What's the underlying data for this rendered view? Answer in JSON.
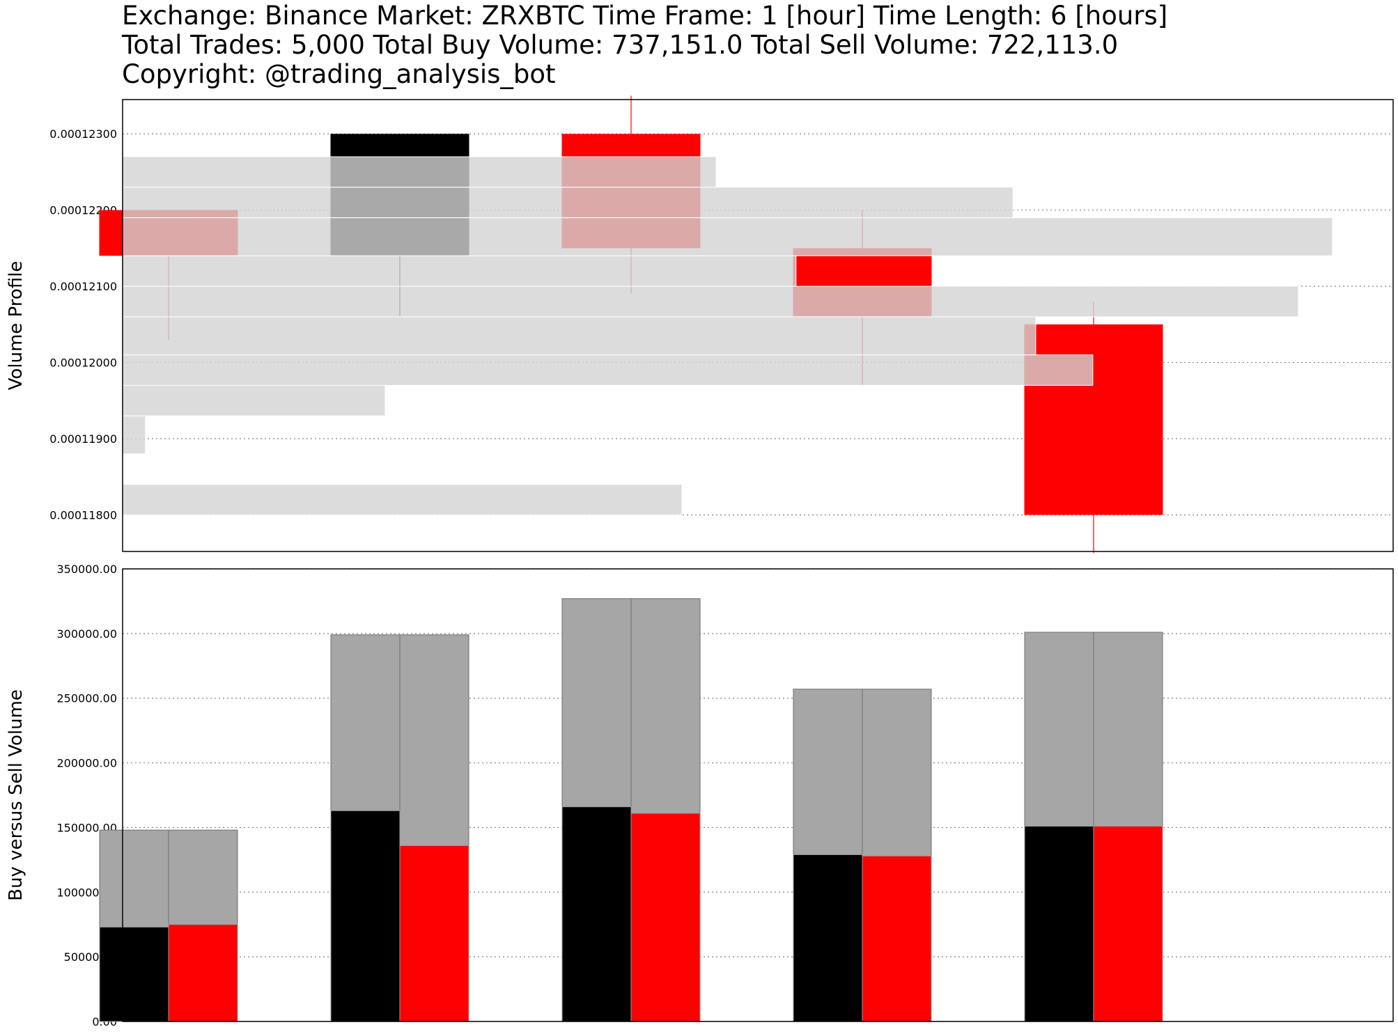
{
  "header": {
    "line1": "Exchange: Binance Market: ZRXBTC Time Frame: 1 [hour] Time Length: 6 [hours]",
    "line2": "Total Trades: 5,000 Total Buy Volume: 737,151.0 Total Sell Volume: 722,113.0",
    "line3": "Copyright: @trading_analysis_bot"
  },
  "colors": {
    "buy": "#000000",
    "sell": "#ff0000",
    "total_volume": "#a6a6a6",
    "profile": "#d3d3d3",
    "grid": "#808080"
  },
  "chart_data": [
    {
      "type": "candlestick",
      "ylabel": "Volume Profile",
      "ylim": [
        0.00011752,
        0.00012345
      ],
      "yticks": [
        "0.00011800",
        "0.00011900",
        "0.00012000",
        "0.00012100",
        "0.00012200",
        "0.00012300"
      ],
      "grid": true,
      "candles": [
        {
          "open": 0.000122,
          "close": 0.0001214,
          "high": 0.000122,
          "low": 0.0001203,
          "color": "#ff0000"
        },
        {
          "open": 0.0001214,
          "close": 0.000123,
          "high": 0.000123,
          "low": 0.0001206,
          "color": "#000000"
        },
        {
          "open": 0.000123,
          "close": 0.0001215,
          "high": 0.0001235,
          "low": 0.0001209,
          "color": "#ff0000"
        },
        {
          "open": 0.0001215,
          "close": 0.0001206,
          "high": 0.000122,
          "low": 0.0001197,
          "color": "#ff0000"
        },
        {
          "open": 0.0001205,
          "close": 0.000118,
          "high": 0.0001208,
          "low": 0.0001175,
          "color": "#ff0000"
        }
      ],
      "volume_profile": [
        {
          "price_low": 0.000118,
          "price_high": 0.0001184,
          "volume": 49
        },
        {
          "price_low": 0.0001188,
          "price_high": 0.0001193,
          "volume": 2
        },
        {
          "price_low": 0.0001193,
          "price_high": 0.0001197,
          "volume": 23
        },
        {
          "price_low": 0.0001197,
          "price_high": 0.0001201,
          "volume": 85
        },
        {
          "price_low": 0.0001201,
          "price_high": 0.0001206,
          "volume": 80
        },
        {
          "price_low": 0.0001206,
          "price_high": 0.000121,
          "volume": 103
        },
        {
          "price_low": 0.000121,
          "price_high": 0.0001214,
          "volume": 59
        },
        {
          "price_low": 0.0001214,
          "price_high": 0.0001219,
          "volume": 106
        },
        {
          "price_low": 0.0001219,
          "price_high": 0.0001223,
          "volume": 78
        },
        {
          "price_low": 0.0001223,
          "price_high": 0.0001227,
          "volume": 52
        }
      ]
    },
    {
      "type": "bar",
      "ylabel": "Buy versus Sell Volume",
      "ylim": [
        0,
        350000
      ],
      "yticks": [
        "0.00",
        "50000.00",
        "100000.00",
        "150000.00",
        "200000.00",
        "250000.00",
        "300000.00",
        "350000.00"
      ],
      "grid": true,
      "series": [
        {
          "values": [
            73000,
            163000,
            166000,
            129000,
            151000
          ]
        },
        {
          "values": [
            75000,
            136000,
            161000,
            128000,
            151000
          ]
        },
        {
          "values": [
            148000,
            299000,
            327000,
            257000,
            301000
          ]
        }
      ]
    }
  ]
}
